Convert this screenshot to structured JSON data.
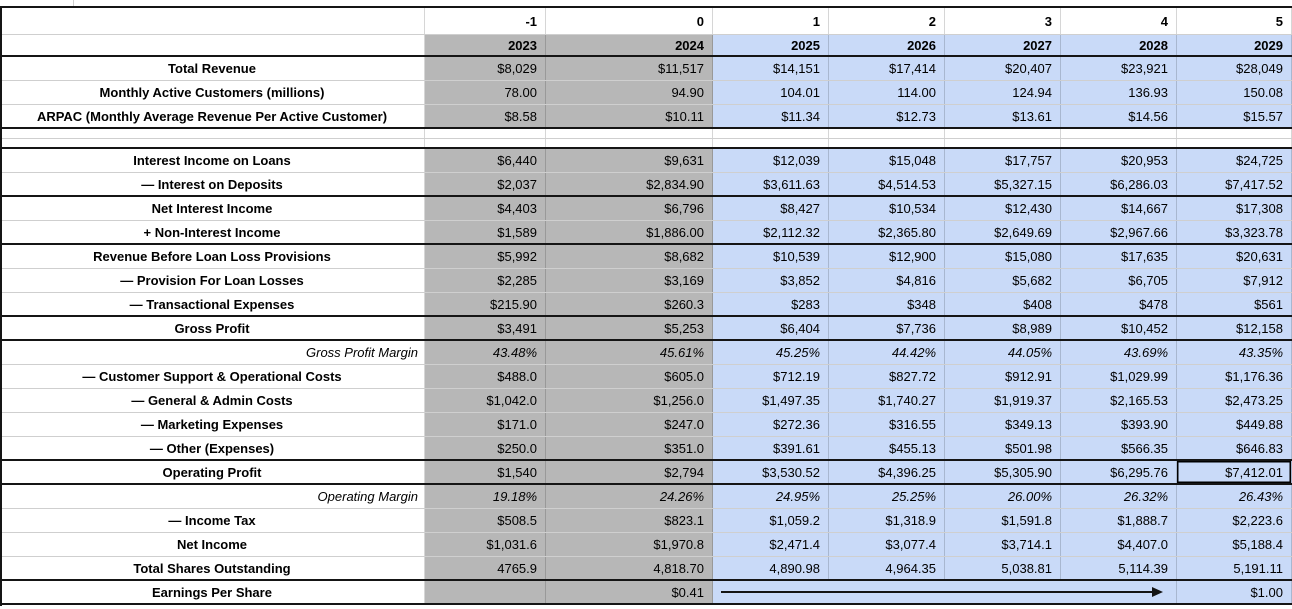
{
  "colors": {
    "gray_fill": "#b7b7b7",
    "blue_fill": "#c9daf8",
    "note_color": "#F4B400",
    "thick_border": "#151515"
  },
  "icons": {
    "note_indicator": "corner-triangle-note",
    "eps_trend_arrow": "right-arrow"
  },
  "sheet": {
    "index_row": [
      "",
      "-1",
      "0",
      "1",
      "2",
      "3",
      "4",
      "5"
    ],
    "year_row": [
      "",
      "2023",
      "2024",
      "2025",
      "2026",
      "2027",
      "2028",
      "2029"
    ],
    "rows": [
      {
        "label": "Total Revenue",
        "values": [
          "$8,029",
          "$11,517",
          "$14,151",
          "$17,414",
          "$20,407",
          "$23,921",
          "$28,049"
        ]
      },
      {
        "label": "Monthly Active Customers (millions)",
        "values": [
          "78.00",
          "94.90",
          "104.01",
          "114.00",
          "124.94",
          "136.93",
          "150.08"
        ]
      },
      {
        "label": "ARPAC (Monthly Average Revenue Per Active Customer)",
        "values": [
          "$8.58",
          "$10.11",
          "$11.34",
          "$12.73",
          "$13.61",
          "$14.56",
          "$15.57"
        ],
        "thick_bottom": true
      },
      {
        "kind": "spacer"
      },
      {
        "kind": "spacer",
        "thick_bottom": true
      },
      {
        "label": "Interest Income on Loans",
        "values": [
          "$6,440",
          "$9,631",
          "$12,039",
          "$15,048",
          "$17,757",
          "$20,953",
          "$24,725"
        ]
      },
      {
        "label": "— Interest on Deposits",
        "values": [
          "$2,037",
          "$2,834.90",
          "$3,611.63",
          "$4,514.53",
          "$5,327.15",
          "$6,286.03",
          "$7,417.52"
        ],
        "thick_bottom": true
      },
      {
        "label": "Net Interest Income",
        "values": [
          "$4,403",
          "$6,796",
          "$8,427",
          "$10,534",
          "$12,430",
          "$14,667",
          "$17,308"
        ]
      },
      {
        "label": "+ Non-Interest Income",
        "values": [
          "$1,589",
          "$1,886.00",
          "$2,112.32",
          "$2,365.80",
          "$2,649.69",
          "$2,967.66",
          "$3,323.78"
        ],
        "thick_bottom": true
      },
      {
        "label": "Revenue Before Loan Loss Provisions",
        "values": [
          "$5,992",
          "$8,682",
          "$10,539",
          "$12,900",
          "$15,080",
          "$17,635",
          "$20,631"
        ]
      },
      {
        "label": "— Provision For Loan Losses",
        "values": [
          "$2,285",
          "$3,169",
          "$3,852",
          "$4,816",
          "$5,682",
          "$6,705",
          "$7,912"
        ]
      },
      {
        "label": "— Transactional Expenses",
        "values": [
          "$215.90",
          "$260.3",
          "$283",
          "$348",
          "$408",
          "$478",
          "$561"
        ],
        "thick_bottom": true
      },
      {
        "label": "Gross Profit",
        "values": [
          "$3,491",
          "$5,253",
          "$6,404",
          "$7,736",
          "$8,989",
          "$10,452",
          "$12,158"
        ],
        "thick_bottom": true
      },
      {
        "kind": "margin",
        "label": "Gross Profit Margin",
        "values": [
          "43.48%",
          "45.61%",
          "45.25%",
          "44.42%",
          "44.05%",
          "43.69%",
          "43.35%"
        ]
      },
      {
        "label": "— Customer Support & Operational Costs",
        "values": [
          "$488.0",
          "$605.0",
          "$712.19",
          "$827.72",
          "$912.91",
          "$1,029.99",
          "$1,176.36"
        ]
      },
      {
        "label": "— General & Admin Costs",
        "values": [
          "$1,042.0",
          "$1,256.0",
          "$1,497.35",
          "$1,740.27",
          "$1,919.37",
          "$2,165.53",
          "$2,473.25"
        ]
      },
      {
        "label": "— Marketing Expenses",
        "values": [
          "$171.0",
          "$247.0",
          "$272.36",
          "$316.55",
          "$349.13",
          "$393.90",
          "$449.88"
        ]
      },
      {
        "label": "— Other (Expenses)",
        "values": [
          "$250.0",
          "$351.0",
          "$391.61",
          "$455.13",
          "$501.98",
          "$566.35",
          "$646.83"
        ],
        "thick_bottom": true,
        "note": true
      },
      {
        "label": "Operating Profit",
        "values": [
          "$1,540",
          "$2,794",
          "$3,530.52",
          "$4,396.25",
          "$5,305.90",
          "$6,295.76",
          "$7,412.01"
        ],
        "thick_bottom": true,
        "boxed": 6
      },
      {
        "kind": "margin",
        "label": "Operating Margin",
        "values": [
          "19.18%",
          "24.26%",
          "24.95%",
          "25.25%",
          "26.00%",
          "26.32%",
          "26.43%"
        ]
      },
      {
        "label": "— Income Tax",
        "values": [
          "$508.5",
          "$823.1",
          "$1,059.2",
          "$1,318.9",
          "$1,591.8",
          "$1,888.7",
          "$2,223.6"
        ]
      },
      {
        "label": "Net Income",
        "values": [
          "$1,031.6",
          "$1,970.8",
          "$2,471.4",
          "$3,077.4",
          "$3,714.1",
          "$4,407.0",
          "$5,188.4"
        ]
      },
      {
        "label": "Total Shares Outstanding",
        "values": [
          "4765.9",
          "4,818.70",
          "4,890.98",
          "4,964.35",
          "5,038.81",
          "5,114.39",
          "5,191.11"
        ],
        "thick_bottom": true
      },
      {
        "kind": "eps",
        "label": "Earnings Per Share",
        "values": [
          "",
          "$0.41",
          "$1.00"
        ],
        "thick_bottom": true
      }
    ]
  }
}
